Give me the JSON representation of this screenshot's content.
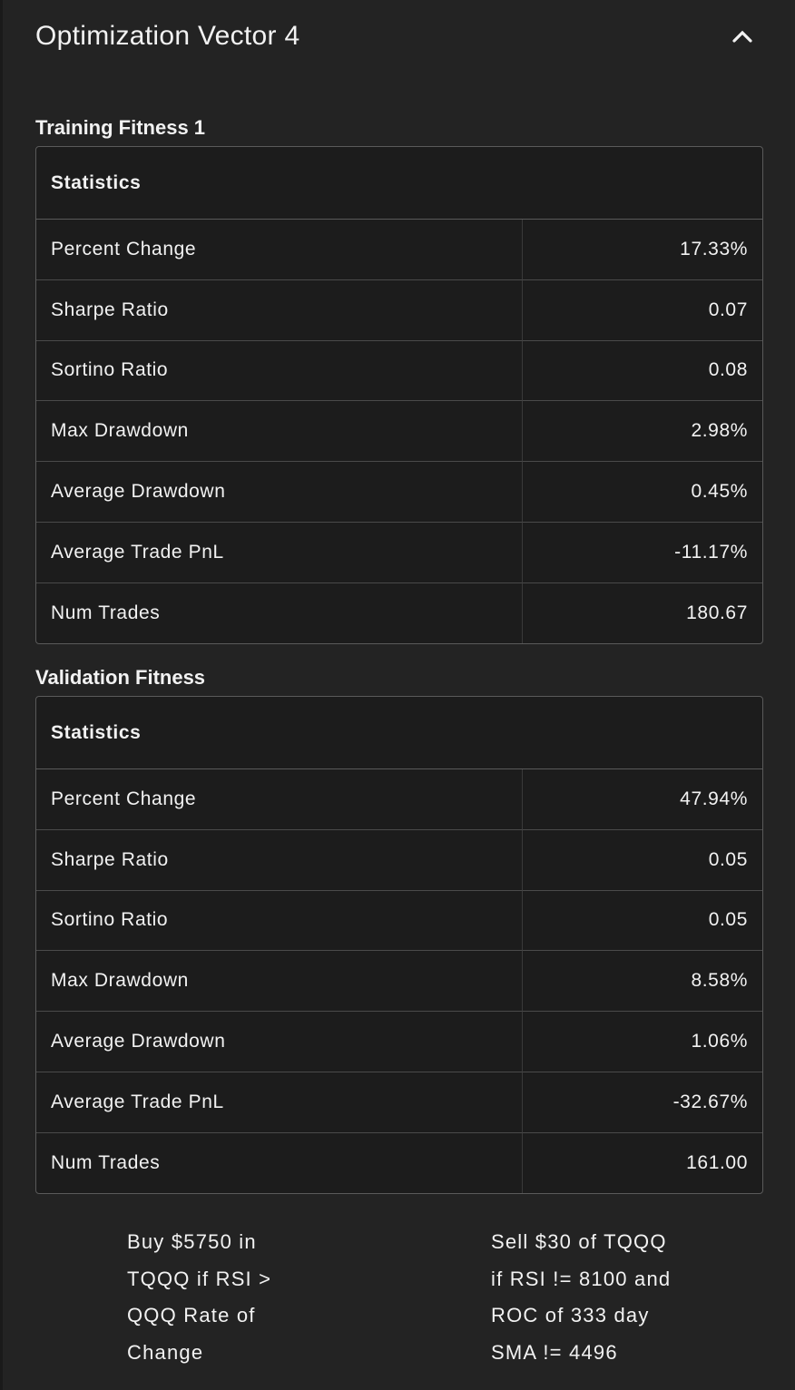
{
  "header": {
    "title": "Optimization Vector 4"
  },
  "sections": [
    {
      "heading": "Training Fitness 1",
      "table": {
        "header": "Statistics",
        "rows": [
          [
            "Percent Change",
            "17.33%"
          ],
          [
            "Sharpe Ratio",
            "0.07"
          ],
          [
            "Sortino Ratio",
            "0.08"
          ],
          [
            "Max Drawdown",
            "2.98%"
          ],
          [
            "Average Drawdown",
            "0.45%"
          ],
          [
            "Average Trade PnL",
            "-11.17%"
          ],
          [
            "Num Trades",
            "180.67"
          ]
        ]
      }
    },
    {
      "heading": "Validation Fitness",
      "table": {
        "header": "Statistics",
        "rows": [
          [
            "Percent Change",
            "47.94%"
          ],
          [
            "Sharpe Ratio",
            "0.05"
          ],
          [
            "Sortino Ratio",
            "0.05"
          ],
          [
            "Max Drawdown",
            "8.58%"
          ],
          [
            "Average Drawdown",
            "1.06%"
          ],
          [
            "Average Trade PnL",
            "-32.67%"
          ],
          [
            "Num Trades",
            "161.00"
          ]
        ]
      }
    }
  ],
  "rules": [
    "Buy $5750 in TQQQ if RSI > QQQ Rate of Change",
    "Sell $30 of TQQQ if RSI != 8100 and ROC of 333 day SMA != 4496"
  ]
}
